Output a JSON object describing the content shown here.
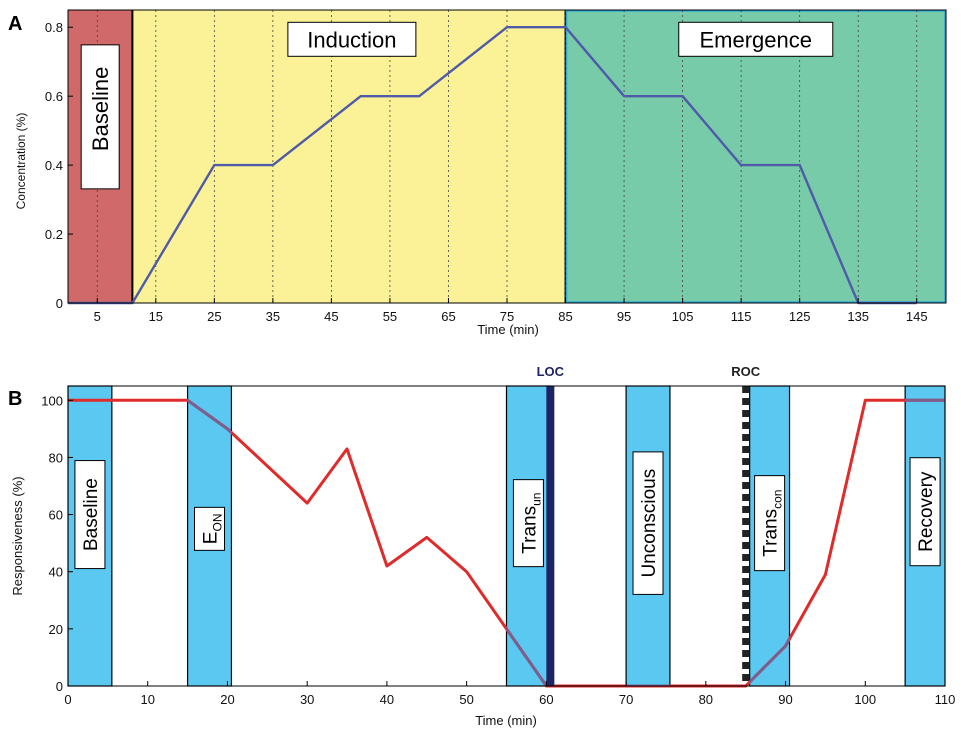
{
  "chart_data": [
    {
      "type": "line",
      "panel_label": "A",
      "xlabel": "Time (min)",
      "ylabel": "Concentration (%)",
      "xlim": [
        0,
        150
      ],
      "ylim": [
        0,
        0.85
      ],
      "xticks": [
        5,
        15,
        25,
        35,
        45,
        55,
        65,
        75,
        85,
        95,
        105,
        115,
        125,
        135,
        145
      ],
      "yticks": [
        0,
        0.2,
        0.4,
        0.6,
        0.8
      ],
      "ytick_labels": [
        "0",
        "0.2",
        "0.4",
        "0.6",
        "0.8"
      ],
      "grid": "vertical dotted at x ticks",
      "phases": [
        {
          "label": "Baseline",
          "start": 0,
          "end": 11,
          "color": "#d06a6a",
          "label_orientation": "vertical"
        },
        {
          "label": "Induction",
          "start": 11,
          "end": 85,
          "color": "#fbf297",
          "label_orientation": "horizontal"
        },
        {
          "label": "Emergence",
          "start": 85,
          "end": 150,
          "color": "#78cba8",
          "label_orientation": "horizontal"
        }
      ],
      "series": [
        {
          "color": "#4f5ba8",
          "x": [
            0,
            11,
            25,
            35,
            50,
            60,
            75,
            85,
            95,
            105,
            115,
            125,
            135,
            145
          ],
          "y": [
            0,
            0,
            0.4,
            0.4,
            0.6,
            0.6,
            0.8,
            0.8,
            0.6,
            0.6,
            0.4,
            0.4,
            0,
            0
          ]
        }
      ]
    },
    {
      "type": "line",
      "panel_label": "B",
      "xlabel": "Time (min)",
      "ylabel": "Responsiveness (%)",
      "xlim": [
        0,
        110
      ],
      "ylim": [
        0,
        105
      ],
      "xticks": [
        0,
        10,
        20,
        30,
        40,
        50,
        60,
        70,
        80,
        90,
        100,
        110
      ],
      "yticks": [
        0,
        20,
        40,
        60,
        80,
        100
      ],
      "grid": "off",
      "windows": [
        {
          "label": "Baseline",
          "label_main": "Baseline",
          "label_sub": "",
          "start": 0,
          "end": 5.5,
          "label_y": 60
        },
        {
          "label": "E_ON",
          "label_main": "E",
          "label_sub": "ON",
          "start": 15,
          "end": 20.5,
          "label_y": 55
        },
        {
          "label": "Trans_un",
          "label_main": "Trans",
          "label_sub": "un",
          "start": 55,
          "end": 60.5,
          "label_y": 57
        },
        {
          "label": "Unconscious",
          "label_main": "Unconscious",
          "label_sub": "",
          "start": 70,
          "end": 75.5,
          "label_y": 57
        },
        {
          "label": "Trans_con",
          "label_main": "Trans",
          "label_sub": "con",
          "start": 85.5,
          "end": 90.5,
          "label_y": 57
        },
        {
          "label": "Recovery",
          "label_main": "Recovery",
          "label_sub": "",
          "start": 105,
          "end": 110,
          "label_y": 61
        }
      ],
      "window_color": "#5bc8f2",
      "markers": [
        {
          "label": "LOC",
          "x": 60.5,
          "style": "solid",
          "color": "#1e2464"
        },
        {
          "label": "ROC",
          "x": 85,
          "style": "dashed",
          "color": "#222222"
        }
      ],
      "series": [
        {
          "color": "#e02b2b",
          "x": [
            0,
            15,
            20,
            25,
            30,
            35,
            40,
            45,
            50,
            55,
            60,
            65,
            70,
            75,
            80,
            85,
            90,
            95,
            100,
            105,
            110
          ],
          "y": [
            100,
            100,
            90,
            77,
            64,
            83,
            42,
            52,
            40,
            20,
            0,
            0,
            0,
            0,
            0,
            0,
            14,
            39,
            100,
            100,
            100
          ]
        }
      ]
    }
  ]
}
